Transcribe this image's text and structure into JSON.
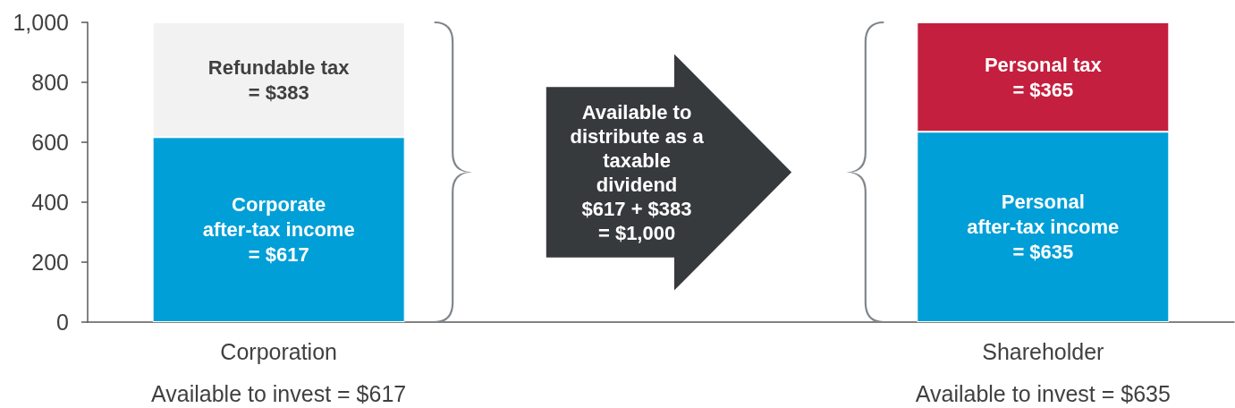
{
  "chart_data": {
    "type": "bar",
    "stacked": true,
    "categories": [
      "Corporation",
      null,
      "Shareholder"
    ],
    "series": [
      {
        "color": "#009fd7",
        "values": [
          617,
          null,
          635
        ],
        "value_labels": [
          "Corporate\nafter-tax income\n= $617",
          null,
          "Personal\nafter-tax income\n= $635"
        ]
      },
      {
        "colors": [
          "#f2f2f2",
          null,
          "#c41f3e"
        ],
        "values": [
          383,
          null,
          365
        ],
        "value_labels": [
          "Refundable tax\n= $383",
          null,
          "Personal tax\n= $365"
        ]
      }
    ],
    "ylim": [
      0,
      1000
    ],
    "yticks": [
      0,
      200,
      400,
      600,
      800,
      {
        "value": 1000,
        "label": "1,000"
      }
    ],
    "grid": false,
    "annotations": [
      "Available to\ndistribute as a\ntaxable\ndividend\n$617 + $383\n= $1,000",
      "Available to invest = $617",
      "Available to invest = $635"
    ]
  }
}
